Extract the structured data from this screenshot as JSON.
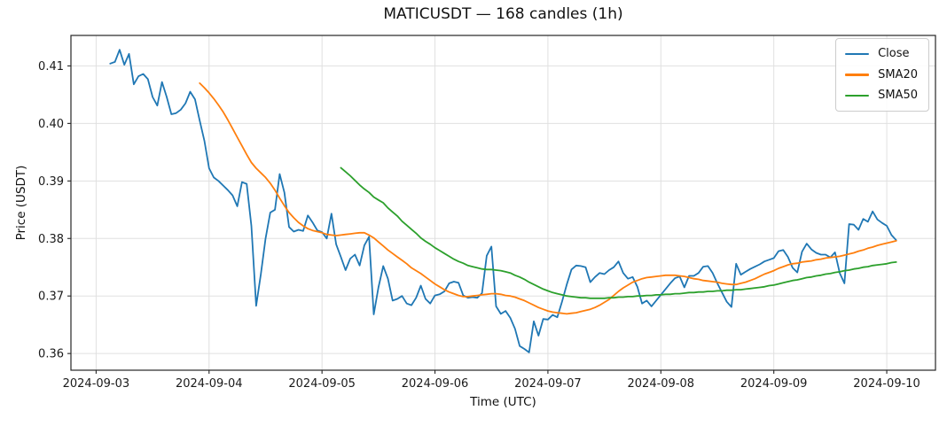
{
  "title": "MATICUSDT — 168 candles (1h)",
  "xlabel": "Time (UTC)",
  "ylabel": "Price (USDT)",
  "legend": [
    {
      "label": "Close",
      "color": "#1f77b4"
    },
    {
      "label": "SMA20",
      "color": "#ff7f0e"
    },
    {
      "label": "SMA50",
      "color": "#2ca02c"
    }
  ],
  "chart_data": {
    "type": "line",
    "title": "MATICUSDT — 168 candles (1h)",
    "xlabel": "Time (UTC)",
    "ylabel": "Price (USDT)",
    "n_candles": 168,
    "interval": "1h",
    "grid": true,
    "legend_position": "upper right",
    "x_tick_labels": [
      "2024-09-03",
      "2024-09-04",
      "2024-09-05",
      "2024-09-06",
      "2024-09-07",
      "2024-09-08",
      "2024-09-09",
      "2024-09-10"
    ],
    "x_tick_hours": [
      0,
      24,
      48,
      72,
      96,
      120,
      144,
      168
    ],
    "y_tick_labels": [
      "0.36",
      "0.37",
      "0.38",
      "0.39",
      "0.40",
      "0.41"
    ],
    "y_ticks": [
      0.36,
      0.37,
      0.38,
      0.39,
      0.4,
      0.41
    ],
    "x_domain_hours": [
      -5.35,
      178.35
    ],
    "y_domain": [
      0.3571,
      0.4153
    ],
    "series": [
      {
        "name": "Close",
        "color": "#1f77b4",
        "start_hour": 3,
        "values": [
          0.4104,
          0.4107,
          0.4128,
          0.4102,
          0.4121,
          0.4068,
          0.4082,
          0.4086,
          0.4077,
          0.4046,
          0.4031,
          0.4072,
          0.4046,
          0.4016,
          0.4018,
          0.4024,
          0.4035,
          0.4055,
          0.4042,
          0.4005,
          0.397,
          0.3922,
          0.3906,
          0.39,
          0.3892,
          0.3884,
          0.3875,
          0.3856,
          0.3898,
          0.3895,
          0.3822,
          0.3683,
          0.3738,
          0.38,
          0.3845,
          0.385,
          0.3912,
          0.388,
          0.382,
          0.3812,
          0.3815,
          0.3813,
          0.384,
          0.3828,
          0.3814,
          0.3811,
          0.38,
          0.3843,
          0.379,
          0.3768,
          0.3745,
          0.3765,
          0.3772,
          0.3753,
          0.3788,
          0.3803,
          0.3668,
          0.3715,
          0.3752,
          0.373,
          0.3692,
          0.3695,
          0.37,
          0.3687,
          0.3684,
          0.3697,
          0.3718,
          0.3695,
          0.3687,
          0.3701,
          0.3703,
          0.3708,
          0.3722,
          0.3725,
          0.3723,
          0.3701,
          0.3697,
          0.3698,
          0.3697,
          0.3705,
          0.377,
          0.3786,
          0.3682,
          0.3669,
          0.3674,
          0.3662,
          0.3643,
          0.3613,
          0.3608,
          0.3602,
          0.3656,
          0.3631,
          0.366,
          0.3659,
          0.3667,
          0.3663,
          0.369,
          0.372,
          0.3746,
          0.3753,
          0.3752,
          0.375,
          0.3724,
          0.3733,
          0.374,
          0.3738,
          0.3745,
          0.375,
          0.376,
          0.374,
          0.373,
          0.3733,
          0.3716,
          0.3687,
          0.3692,
          0.3682,
          0.3692,
          0.3702,
          0.3712,
          0.3722,
          0.3731,
          0.3734,
          0.3715,
          0.3735,
          0.3735,
          0.374,
          0.3751,
          0.3752,
          0.374,
          0.3722,
          0.3706,
          0.369,
          0.3681,
          0.3756,
          0.3737,
          0.3742,
          0.3747,
          0.3751,
          0.3755,
          0.376,
          0.3763,
          0.3766,
          0.3778,
          0.378,
          0.3768,
          0.3749,
          0.3741,
          0.3777,
          0.3791,
          0.3781,
          0.3775,
          0.3772,
          0.3772,
          0.3767,
          0.3776,
          0.374,
          0.3722,
          0.3825,
          0.3824,
          0.3815,
          0.3834,
          0.3829,
          0.3847,
          0.3833,
          0.3827,
          0.3822,
          0.3806,
          0.3797
        ]
      },
      {
        "name": "SMA20",
        "color": "#ff7f0e",
        "start_hour": 22,
        "values": [
          0.407,
          0.4062,
          0.4053,
          0.4043,
          0.4032,
          0.402,
          0.4006,
          0.3991,
          0.3976,
          0.3961,
          0.3946,
          0.3932,
          0.3922,
          0.3914,
          0.3906,
          0.3896,
          0.3884,
          0.387,
          0.3857,
          0.3845,
          0.3836,
          0.3828,
          0.3822,
          0.3817,
          0.3814,
          0.3812,
          0.381,
          0.3807,
          0.3806,
          0.3805,
          0.3806,
          0.3807,
          0.3808,
          0.3809,
          0.381,
          0.381,
          0.3806,
          0.3801,
          0.3794,
          0.3787,
          0.378,
          0.3774,
          0.3768,
          0.3762,
          0.3756,
          0.3749,
          0.3744,
          0.3739,
          0.3733,
          0.3727,
          0.3721,
          0.3716,
          0.3711,
          0.3707,
          0.3704,
          0.3701,
          0.3699,
          0.3699,
          0.37,
          0.3701,
          0.3702,
          0.3703,
          0.3704,
          0.3704,
          0.3703,
          0.3701,
          0.37,
          0.3698,
          0.3695,
          0.3692,
          0.3688,
          0.3684,
          0.368,
          0.3677,
          0.3674,
          0.3672,
          0.3671,
          0.367,
          0.3669,
          0.367,
          0.3671,
          0.3673,
          0.3675,
          0.3677,
          0.368,
          0.3684,
          0.3689,
          0.3694,
          0.3701,
          0.3708,
          0.3714,
          0.3719,
          0.3724,
          0.3727,
          0.373,
          0.3732,
          0.3733,
          0.3734,
          0.3735,
          0.3736,
          0.3736,
          0.3736,
          0.3735,
          0.3734,
          0.3732,
          0.373,
          0.3729,
          0.3727,
          0.3726,
          0.3725,
          0.3724,
          0.3722,
          0.3721,
          0.372,
          0.372,
          0.3722,
          0.3724,
          0.3727,
          0.373,
          0.3734,
          0.3738,
          0.3741,
          0.3744,
          0.3748,
          0.3751,
          0.3754,
          0.3756,
          0.3757,
          0.3759,
          0.376,
          0.3761,
          0.3763,
          0.3764,
          0.3766,
          0.3767,
          0.3768,
          0.3769,
          0.3771,
          0.3773,
          0.3775,
          0.3778,
          0.378,
          0.3783,
          0.3785,
          0.3788,
          0.379,
          0.3792,
          0.3794,
          0.3796
        ]
      },
      {
        "name": "SMA50",
        "color": "#2ca02c",
        "start_hour": 52,
        "values": [
          0.3923,
          0.3916,
          0.3909,
          0.3901,
          0.3893,
          0.3886,
          0.388,
          0.3872,
          0.3867,
          0.3862,
          0.3853,
          0.3846,
          0.3839,
          0.383,
          0.3823,
          0.3816,
          0.3809,
          0.3801,
          0.3795,
          0.379,
          0.3784,
          0.3779,
          0.3774,
          0.3769,
          0.3764,
          0.376,
          0.3757,
          0.3753,
          0.3751,
          0.3749,
          0.3747,
          0.3746,
          0.3746,
          0.3745,
          0.3744,
          0.3742,
          0.374,
          0.3736,
          0.3733,
          0.3729,
          0.3724,
          0.372,
          0.3716,
          0.3712,
          0.3709,
          0.3706,
          0.3704,
          0.3702,
          0.37,
          0.3699,
          0.3698,
          0.3697,
          0.3697,
          0.3696,
          0.3696,
          0.3696,
          0.3696,
          0.3697,
          0.3697,
          0.3698,
          0.3698,
          0.3699,
          0.3699,
          0.37,
          0.37,
          0.3701,
          0.3701,
          0.3702,
          0.3702,
          0.3703,
          0.3703,
          0.3704,
          0.3704,
          0.3705,
          0.3706,
          0.3706,
          0.3707,
          0.3707,
          0.3708,
          0.3708,
          0.3709,
          0.3709,
          0.371,
          0.371,
          0.3711,
          0.3711,
          0.3712,
          0.3713,
          0.3714,
          0.3715,
          0.3716,
          0.3718,
          0.3719,
          0.3721,
          0.3723,
          0.3725,
          0.3727,
          0.3728,
          0.373,
          0.3732,
          0.3733,
          0.3735,
          0.3736,
          0.3738,
          0.3739,
          0.3741,
          0.3742,
          0.3744,
          0.3745,
          0.3747,
          0.3748,
          0.375,
          0.3751,
          0.3753,
          0.3754,
          0.3755,
          0.3756,
          0.3758,
          0.3759
        ]
      }
    ]
  }
}
